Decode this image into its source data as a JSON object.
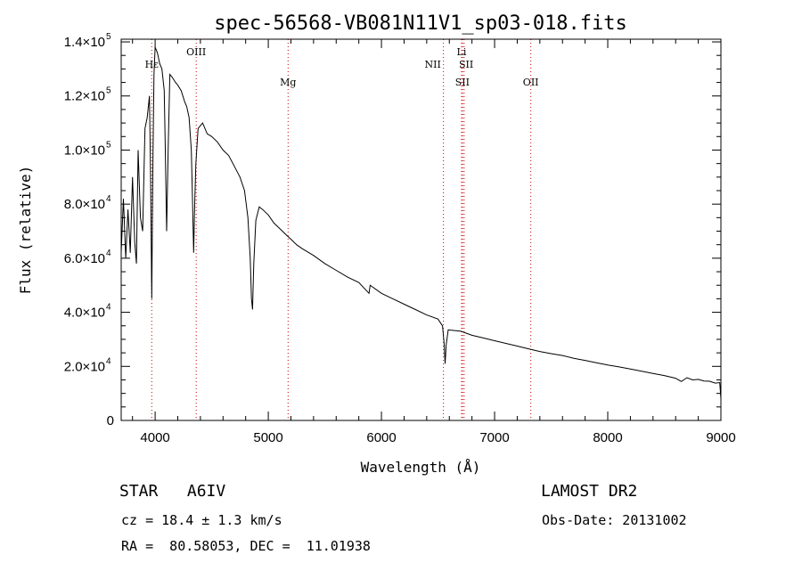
{
  "chart_data": {
    "type": "line",
    "title": "spec-56568-VB081N11V1_sp03-018.fits",
    "xlabel": "Wavelength (Å)",
    "ylabel": "Flux (relative)",
    "xlim": [
      3700,
      9000
    ],
    "ylim": [
      0,
      141000
    ],
    "x_ticks": [
      4000,
      5000,
      6000,
      7000,
      8000,
      9000
    ],
    "y_ticks": [
      {
        "value": 0,
        "mant": "0",
        "exp": ""
      },
      {
        "value": 20000,
        "mant": "2.0×10",
        "exp": "4"
      },
      {
        "value": 40000,
        "mant": "4.0×10",
        "exp": "4"
      },
      {
        "value": 60000,
        "mant": "6.0×10",
        "exp": "4"
      },
      {
        "value": 80000,
        "mant": "8.0×10",
        "exp": "4"
      },
      {
        "value": 100000,
        "mant": "1.0×10",
        "exp": "5"
      },
      {
        "value": 120000,
        "mant": "1.2×10",
        "exp": "5"
      },
      {
        "value": 140000,
        "mant": "1.4×10",
        "exp": "5"
      }
    ],
    "line_color": "#000000",
    "marker_color": "#cc0000",
    "line_markers": [
      {
        "x": 3970,
        "label": "Hε"
      },
      {
        "x": 4363,
        "label": "OIII"
      },
      {
        "x": 5175,
        "label": "Mg"
      },
      {
        "x": 6548,
        "label": "NII"
      },
      {
        "x": 6708,
        "label": "Li"
      },
      {
        "x": 6717,
        "label": "SII"
      },
      {
        "x": 6731,
        "label": "SII"
      },
      {
        "x": 7320,
        "label": "OII"
      }
    ],
    "series": [
      {
        "values": [
          [
            3700,
            62000
          ],
          [
            3720,
            82000
          ],
          [
            3740,
            60000
          ],
          [
            3760,
            78000
          ],
          [
            3780,
            62000
          ],
          [
            3800,
            90000
          ],
          [
            3820,
            66000
          ],
          [
            3835,
            58000
          ],
          [
            3850,
            100000
          ],
          [
            3870,
            75000
          ],
          [
            3890,
            70000
          ],
          [
            3910,
            108000
          ],
          [
            3930,
            112000
          ],
          [
            3950,
            120000
          ],
          [
            3960,
            90000
          ],
          [
            3970,
            45000
          ],
          [
            3980,
            95000
          ],
          [
            3990,
            128000
          ],
          [
            4000,
            138000
          ],
          [
            4020,
            136000
          ],
          [
            4040,
            132000
          ],
          [
            4060,
            130000
          ],
          [
            4080,
            122000
          ],
          [
            4090,
            100000
          ],
          [
            4102,
            70000
          ],
          [
            4115,
            100000
          ],
          [
            4130,
            128000
          ],
          [
            4150,
            127000
          ],
          [
            4180,
            125000
          ],
          [
            4200,
            124000
          ],
          [
            4230,
            122000
          ],
          [
            4260,
            118000
          ],
          [
            4280,
            116000
          ],
          [
            4300,
            112000
          ],
          [
            4320,
            100000
          ],
          [
            4330,
            82000
          ],
          [
            4340,
            62000
          ],
          [
            4350,
            80000
          ],
          [
            4360,
            95000
          ],
          [
            4380,
            108000
          ],
          [
            4420,
            110000
          ],
          [
            4460,
            106000
          ],
          [
            4500,
            105000
          ],
          [
            4550,
            103000
          ],
          [
            4600,
            100000
          ],
          [
            4650,
            98000
          ],
          [
            4700,
            94000
          ],
          [
            4750,
            90000
          ],
          [
            4790,
            85000
          ],
          [
            4820,
            75000
          ],
          [
            4840,
            60000
          ],
          [
            4851,
            45000
          ],
          [
            4861,
            41000
          ],
          [
            4872,
            58000
          ],
          [
            4890,
            74000
          ],
          [
            4920,
            79000
          ],
          [
            4950,
            78000
          ],
          [
            5000,
            76000
          ],
          [
            5050,
            73000
          ],
          [
            5100,
            71000
          ],
          [
            5150,
            69000
          ],
          [
            5200,
            67000
          ],
          [
            5250,
            65000
          ],
          [
            5300,
            63500
          ],
          [
            5400,
            61000
          ],
          [
            5500,
            58000
          ],
          [
            5600,
            55500
          ],
          [
            5700,
            53000
          ],
          [
            5800,
            51000
          ],
          [
            5890,
            47000
          ],
          [
            5900,
            50000
          ],
          [
            6000,
            47000
          ],
          [
            6100,
            45000
          ],
          [
            6200,
            43000
          ],
          [
            6300,
            41000
          ],
          [
            6400,
            39000
          ],
          [
            6500,
            37500
          ],
          [
            6540,
            35000
          ],
          [
            6555,
            28000
          ],
          [
            6563,
            21000
          ],
          [
            6572,
            28000
          ],
          [
            6590,
            33500
          ],
          [
            6700,
            33000
          ],
          [
            6800,
            31500
          ],
          [
            6900,
            30500
          ],
          [
            7000,
            29500
          ],
          [
            7100,
            28500
          ],
          [
            7200,
            27500
          ],
          [
            7300,
            26500
          ],
          [
            7400,
            25500
          ],
          [
            7500,
            24700
          ],
          [
            7600,
            24000
          ],
          [
            7700,
            23000
          ],
          [
            7800,
            22200
          ],
          [
            7900,
            21300
          ],
          [
            8000,
            20500
          ],
          [
            8100,
            19800
          ],
          [
            8200,
            19000
          ],
          [
            8300,
            18200
          ],
          [
            8400,
            17400
          ],
          [
            8500,
            16600
          ],
          [
            8600,
            15600
          ],
          [
            8650,
            14400
          ],
          [
            8700,
            15800
          ],
          [
            8750,
            15000
          ],
          [
            8800,
            15200
          ],
          [
            8850,
            14600
          ],
          [
            8900,
            14500
          ],
          [
            8950,
            13800
          ],
          [
            8990,
            14000
          ],
          [
            9000,
            8000
          ]
        ]
      }
    ]
  },
  "info": {
    "left1": "STAR   A6IV",
    "left2": "cz = 18.4 ± 1.3 km/s",
    "left3": "RA =  80.58053, DEC =  11.01938",
    "right1": "LAMOST DR2",
    "right2": "Obs-Date: 20131002"
  }
}
